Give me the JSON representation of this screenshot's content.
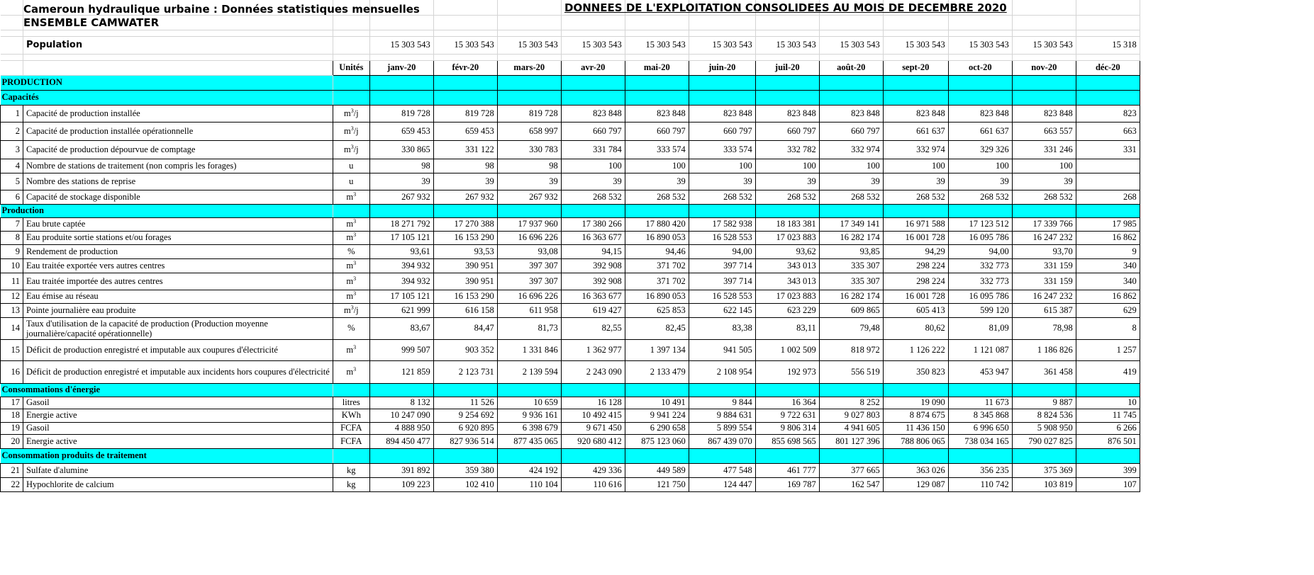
{
  "header": {
    "title_left": "Cameroun hydraulique urbaine : Données statistiques mensuelles",
    "subtitle_left": "ENSEMBLE CAMWATER",
    "title_right": "DONNEES DE L'EXPLOITATION CONSOLIDEES AU MOIS DE DECEMBRE 2020",
    "population_label": "Population",
    "population_values": [
      "15 303 543",
      "15 303 543",
      "15 303 543",
      "15 303 543",
      "15 303 543",
      "15 303 543",
      "15 303 543",
      "15 303 543",
      "15 303 543",
      "15 303 543",
      "15 303 543",
      "15 318"
    ]
  },
  "columns": {
    "units": "Unités",
    "months": [
      "janv-20",
      "févr-20",
      "mars-20",
      "avr-20",
      "mai-20",
      "juin-20",
      "juil-20",
      "août-20",
      "sept-20",
      "oct-20",
      "nov-20",
      "déc-20"
    ]
  },
  "sections": {
    "production_main": "PRODUCTION",
    "capacites": "Capacités",
    "production": "Production",
    "energie": "Consommations d'énergie",
    "traitement": "Consommation produits de traitement"
  },
  "rows": [
    {
      "num": "1",
      "label": "Capacité de production installée",
      "unit": "m³/j",
      "values": [
        "819 728",
        "819 728",
        "819 728",
        "823 848",
        "823 848",
        "823 848",
        "823 848",
        "823 848",
        "823 848",
        "823 848",
        "823 848",
        "823"
      ]
    },
    {
      "num": "2",
      "label": "Capacité de production installée opérationnelle",
      "unit": "m³/j",
      "values": [
        "659 453",
        "659 453",
        "658 997",
        "660 797",
        "660 797",
        "660 797",
        "660 797",
        "660 797",
        "661 637",
        "661 637",
        "663 557",
        "663"
      ]
    },
    {
      "num": "3",
      "label": "Capacité de production dépourvue de comptage",
      "unit": "m³/j",
      "values": [
        "330 865",
        "331 122",
        "330 783",
        "331 784",
        "333 574",
        "333 574",
        "332 782",
        "332 974",
        "332 974",
        "329 326",
        "331 246",
        "331"
      ]
    },
    {
      "num": "4",
      "label": "Nombre de stations de traitement (non compris les forages)",
      "unit": "u",
      "values": [
        "98",
        "98",
        "98",
        "100",
        "100",
        "100",
        "100",
        "100",
        "100",
        "100",
        "100",
        ""
      ]
    },
    {
      "num": "5",
      "label": "Nombre des stations de reprise",
      "unit": "u",
      "values": [
        "39",
        "39",
        "39",
        "39",
        "39",
        "39",
        "39",
        "39",
        "39",
        "39",
        "39",
        ""
      ]
    },
    {
      "num": "6",
      "label": "Capacité de stockage disponible",
      "unit": "m³",
      "values": [
        "267 932",
        "267 932",
        "267 932",
        "268 532",
        "268 532",
        "268 532",
        "268 532",
        "268 532",
        "268 532",
        "268 532",
        "268 532",
        "268"
      ]
    },
    {
      "num": "7",
      "label": "Eau brute captée",
      "unit": "m³",
      "values": [
        "18 271 792",
        "17 270 388",
        "17 937 960",
        "17 380 266",
        "17 880 420",
        "17 582 938",
        "18 183 381",
        "17 349 141",
        "16 971 588",
        "17 123 512",
        "17 339 766",
        "17 985"
      ]
    },
    {
      "num": "8",
      "label": "Eau produite sortie stations et/ou forages",
      "unit": "m³",
      "values": [
        "17 105 121",
        "16 153 290",
        "16 696 226",
        "16 363 677",
        "16 890 053",
        "16 528 553",
        "17 023 883",
        "16 282 174",
        "16 001 728",
        "16 095 786",
        "16 247 232",
        "16 862"
      ]
    },
    {
      "num": "9",
      "label": "Rendement de production",
      "unit": "%",
      "values": [
        "93,61",
        "93,53",
        "93,08",
        "94,15",
        "94,46",
        "94,00",
        "93,62",
        "93,85",
        "94,29",
        "94,00",
        "93,70",
        "9"
      ]
    },
    {
      "num": "10",
      "label": "Eau traitée exportée vers autres centres",
      "unit": "m³",
      "values": [
        "394 932",
        "390 951",
        "397 307",
        "392 908",
        "371 702",
        "397 714",
        "343 013",
        "335 307",
        "298 224",
        "332 773",
        "331 159",
        "340"
      ]
    },
    {
      "num": "11",
      "label": "Eau traitée importée des autres centres",
      "unit": "m³",
      "values": [
        "394 932",
        "390 951",
        "397 307",
        "392 908",
        "371 702",
        "397 714",
        "343 013",
        "335 307",
        "298 224",
        "332 773",
        "331 159",
        "340"
      ]
    },
    {
      "num": "12",
      "label": "Eau émise au réseau",
      "unit": "m³",
      "values": [
        "17 105 121",
        "16 153 290",
        "16 696 226",
        "16 363 677",
        "16 890 053",
        "16 528 553",
        "17 023 883",
        "16 282 174",
        "16 001 728",
        "16 095 786",
        "16 247 232",
        "16 862"
      ]
    },
    {
      "num": "13",
      "label": "Pointe journalière eau produite",
      "unit": "m³/j",
      "values": [
        "621 999",
        "616 158",
        "611 958",
        "619 427",
        "625 853",
        "622 145",
        "623 229",
        "609 865",
        "605 413",
        "599 120",
        "615 387",
        "629"
      ]
    },
    {
      "num": "14",
      "label": "Taux d'utilisation de la capacité de production (Production moyenne journalière/capacité opérationnelle)",
      "unit": "%",
      "values": [
        "83,67",
        "84,47",
        "81,73",
        "82,55",
        "82,45",
        "83,38",
        "83,11",
        "79,48",
        "80,62",
        "81,09",
        "78,98",
        "8"
      ]
    },
    {
      "num": "15",
      "label": "Déficit de production enregistré et imputable aux coupures d'électricité",
      "unit": "m³",
      "values": [
        "999 507",
        "903 352",
        "1 331 846",
        "1 362 977",
        "1 397 134",
        "941 505",
        "1 002 509",
        "818 972",
        "1 126 222",
        "1 121 087",
        "1 186 826",
        "1 257"
      ]
    },
    {
      "num": "16",
      "label": "Déficit de production enregistré et imputable aux incidents hors coupures d'électricité",
      "unit": "m³",
      "values": [
        "121 859",
        "2 123 731",
        "2 139 594",
        "2 243 090",
        "2 133 479",
        "2 108 954",
        "192 973",
        "556 519",
        "350 823",
        "453 947",
        "361 458",
        "419"
      ]
    },
    {
      "num": "17",
      "label": "Gasoil",
      "unit": "litres",
      "values": [
        "8 132",
        "11 526",
        "10 659",
        "16 128",
        "10 491",
        "9 844",
        "16 364",
        "8 252",
        "19 090",
        "11 673",
        "9 887",
        "10"
      ]
    },
    {
      "num": "18",
      "label": "Energie active",
      "unit": "KWh",
      "values": [
        "10 247 090",
        "9 254 692",
        "9 936 161",
        "10 492 415",
        "9 941 224",
        "9 884 631",
        "9 722 631",
        "9 027 803",
        "8 874 675",
        "8 345 868",
        "8 824 536",
        "11 745"
      ]
    },
    {
      "num": "19",
      "label": "Gasoil",
      "unit": "FCFA",
      "values": [
        "4 888 950",
        "6 920 895",
        "6 398 679",
        "9 671 450",
        "6 290 658",
        "5 899 554",
        "9 806 314",
        "4 941 605",
        "11 436 150",
        "6 996 650",
        "5 908 950",
        "6 266"
      ]
    },
    {
      "num": "20",
      "label": "Energie active",
      "unit": "FCFA",
      "values": [
        "894 450 477",
        "827 936 514",
        "877 435 065",
        "920 680 412",
        "875 123 060",
        "867 439 070",
        "855 698 565",
        "801 127 396",
        "788 806 065",
        "738 034 165",
        "790 027 825",
        "876 501"
      ]
    },
    {
      "num": "21",
      "label": "Sulfate d'alumine",
      "unit": "kg",
      "values": [
        "391 892",
        "359 380",
        "424 192",
        "429 336",
        "449 589",
        "477 548",
        "461 777",
        "377 665",
        "363 026",
        "356 235",
        "375 369",
        "399"
      ]
    },
    {
      "num": "22",
      "label": "Hypochlorite de calcium",
      "unit": "kg",
      "values": [
        "109 223",
        "102 410",
        "110 104",
        "110 616",
        "121 750",
        "124 447",
        "169 787",
        "162 547",
        "129 087",
        "110 742",
        "103 819",
        "107"
      ]
    }
  ]
}
